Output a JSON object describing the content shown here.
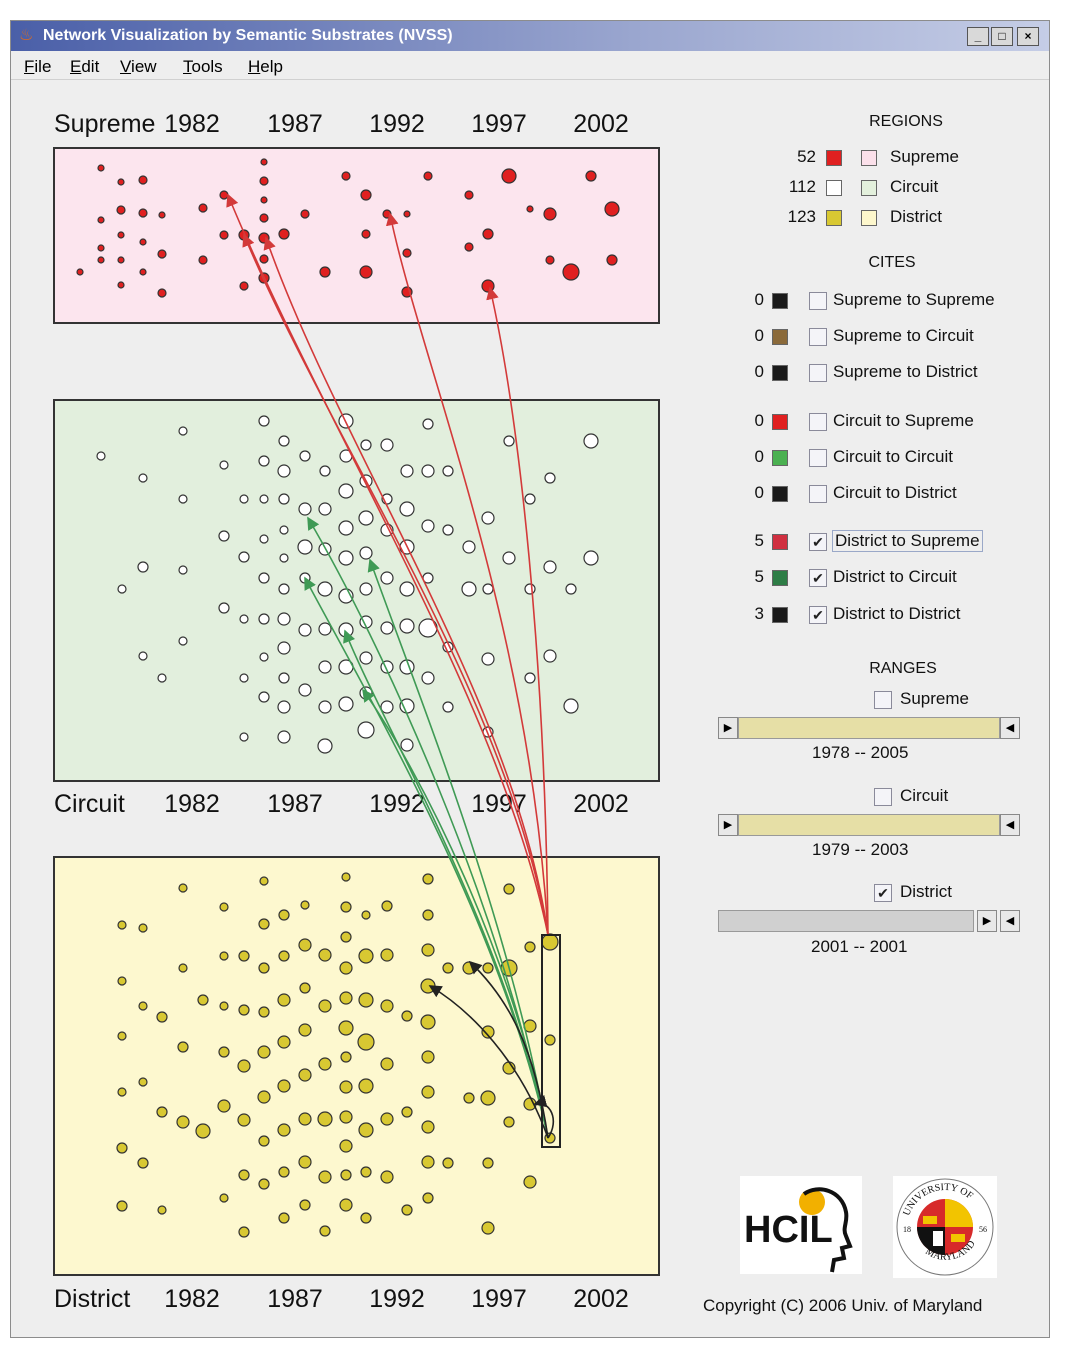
{
  "window": {
    "title": "Network Visualization by Semantic Substrates (NVSS)",
    "minimize_glyph": "_",
    "maximize_glyph": "□",
    "close_glyph": "×"
  },
  "menu": [
    "File",
    "Edit",
    "View",
    "Tools",
    "Help"
  ],
  "regions_plot": {
    "years": [
      "1982",
      "1987",
      "1992",
      "1997",
      "2002"
    ],
    "supreme": {
      "label": "Supreme",
      "fill": "#fce5ee",
      "node_color": "#e02020"
    },
    "circuit": {
      "label": "Circuit",
      "fill": "#e2efdd",
      "node_color": "#ffffff"
    },
    "district": {
      "label": "District",
      "fill": "#fdf8cf",
      "node_color": "#d8c832"
    }
  },
  "panel": {
    "regions_heading": "REGIONS",
    "regions": [
      {
        "count": "52",
        "color": "#e02020",
        "chip": "#fbe0ea",
        "label": "Supreme"
      },
      {
        "count": "112",
        "color": "#ffffff",
        "chip": "#e3f0dc",
        "label": "Circuit"
      },
      {
        "count": "123",
        "color": "#d8c832",
        "chip": "#fdf7cc",
        "label": "District"
      }
    ],
    "cites_heading": "CITES",
    "cites": [
      {
        "count": "0",
        "color": "#1a1a1a",
        "checked": false,
        "label": "Supreme to Supreme"
      },
      {
        "count": "0",
        "color": "#8b6a3a",
        "checked": false,
        "label": "Supreme to Circuit"
      },
      {
        "count": "0",
        "color": "#1a1a1a",
        "checked": false,
        "label": "Supreme to District"
      },
      {
        "count": "0",
        "color": "#e02020",
        "checked": false,
        "label": "Circuit to Supreme"
      },
      {
        "count": "0",
        "color": "#4ab050",
        "checked": false,
        "label": "Circuit to Circuit"
      },
      {
        "count": "0",
        "color": "#1a1a1a",
        "checked": false,
        "label": "Circuit to District"
      },
      {
        "count": "5",
        "color": "#d03040",
        "checked": true,
        "label": "District to Supreme"
      },
      {
        "count": "5",
        "color": "#2e7d46",
        "checked": true,
        "label": "District to Circuit"
      },
      {
        "count": "3",
        "color": "#1a1a1a",
        "checked": true,
        "label": "District to District"
      }
    ],
    "ranges_heading": "RANGES",
    "ranges": [
      {
        "label": "Supreme",
        "checked": false,
        "from": "1978",
        "sep": "--",
        "to": "2005"
      },
      {
        "label": "Circuit",
        "checked": false,
        "from": "1979",
        "sep": "--",
        "to": "2003"
      },
      {
        "label": "District",
        "checked": true,
        "from": "2001",
        "sep": "--",
        "to": "2001"
      }
    ],
    "check_glyph": "✔",
    "arrow_right": "▶",
    "arrow_left": "◀"
  },
  "logos": {
    "hcil_text": "HCIL",
    "umd_text": "UNIVERSITY OF MARYLAND",
    "umd_years": "18 56"
  },
  "copyright": "Copyright (C) 2006  Univ. of Maryland",
  "colors": {
    "link_supreme": "#d33a3a",
    "link_circuit": "#3f9a55",
    "link_district": "#222222"
  }
}
